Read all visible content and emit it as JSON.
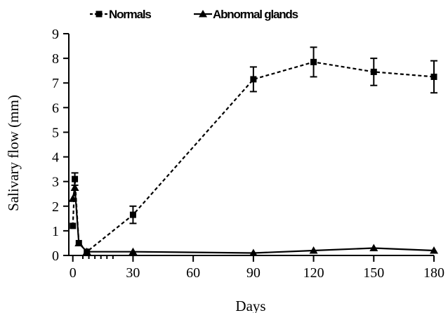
{
  "chart_data": {
    "type": "line",
    "xlabel": "Days",
    "ylabel": "Salivary flow (mm)",
    "xlim": [
      -2,
      180
    ],
    "ylim": [
      0,
      9
    ],
    "xticks": [
      0,
      30,
      60,
      90,
      120,
      150,
      180
    ],
    "yticks": [
      0,
      1,
      2,
      3,
      4,
      5,
      6,
      7,
      8,
      9
    ],
    "minor_xticks": [
      5,
      8,
      11,
      14,
      17,
      20
    ],
    "grid": false,
    "legend": "top",
    "series": [
      {
        "name": "Normals",
        "marker": "square",
        "line": "dashed",
        "x": [
          0,
          1,
          3,
          7,
          30,
          90,
          120,
          150,
          180
        ],
        "y": [
          1.2,
          3.1,
          0.5,
          0.15,
          1.65,
          7.15,
          7.85,
          7.45,
          7.25
        ],
        "err": [
          0,
          0.25,
          0,
          0,
          0.35,
          0.5,
          0.6,
          0.55,
          0.65
        ]
      },
      {
        "name": "Abnormal glands",
        "marker": "triangle",
        "line": "solid",
        "x": [
          0,
          1,
          3,
          7,
          30,
          90,
          120,
          150,
          180
        ],
        "y": [
          2.3,
          2.75,
          0.5,
          0.15,
          0.15,
          0.1,
          0.2,
          0.3,
          0.2
        ],
        "err": [
          0,
          0,
          0,
          0,
          0,
          0,
          0,
          0,
          0
        ]
      }
    ]
  }
}
